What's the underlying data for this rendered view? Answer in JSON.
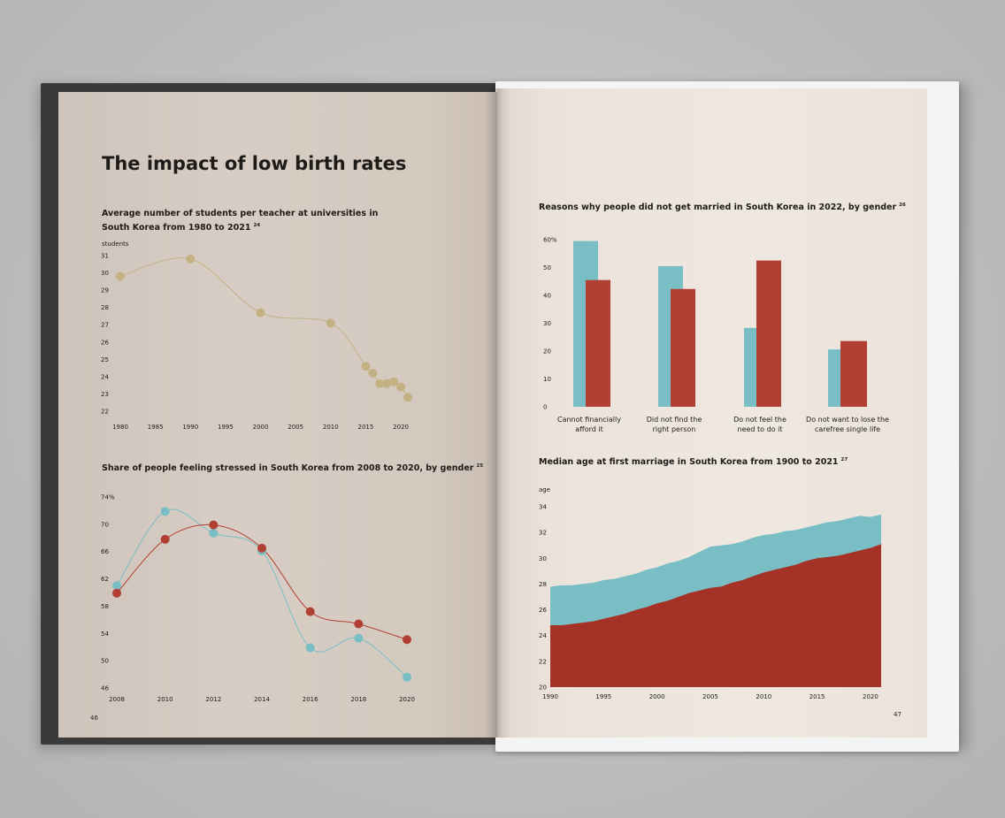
{
  "page_left": {
    "heading": "The impact of low birth rates",
    "page_number": "46"
  },
  "page_right": {
    "page_number": "47"
  },
  "colors": {
    "tan": "#c3b184",
    "teal": "#79bec4",
    "red": "#b23f33",
    "dark_red": "#a63127",
    "text": "#1e1b18"
  },
  "chart_data": [
    {
      "id": "students",
      "type": "line",
      "title": "Average number of students per teacher at universities in South Korea from 1980 to 2021",
      "title_lines": [
        "Average number of students per teacher at universities in",
        "South Korea from 1980 to 2021"
      ],
      "footnote": "24",
      "unit_label": "students",
      "xticks": [
        "1980",
        "1985",
        "1990",
        "1995",
        "2000",
        "2005",
        "2010",
        "2015",
        "2020"
      ],
      "yticks": [
        "22",
        "23",
        "24",
        "25",
        "26",
        "27",
        "28",
        "29",
        "30",
        "31"
      ],
      "xlim": [
        1980,
        2021
      ],
      "ylim": [
        22,
        31
      ],
      "series": [
        {
          "x": [
            1980,
            1990,
            2000,
            2010,
            2015,
            2016,
            2017,
            2018,
            2019,
            2020,
            2021
          ],
          "y": [
            29.8,
            30.8,
            27.7,
            27.1,
            24.6,
            24.2,
            23.6,
            23.6,
            23.7,
            23.4,
            22.8
          ]
        }
      ]
    },
    {
      "id": "stress",
      "type": "line",
      "title": "Share of people feeling stressed in South Korea from 2008 to 2020, by gender",
      "footnote": "25",
      "xticks": [
        "2008",
        "2010",
        "2012",
        "2014",
        "2016",
        "2018",
        "2020"
      ],
      "yticks": [
        "46",
        "50",
        "54",
        "58",
        "62",
        "66",
        "70",
        "74%"
      ],
      "xlim": [
        2008,
        2020
      ],
      "ylim": [
        46,
        74
      ],
      "series": [
        {
          "color": "teal",
          "x": [
            2008,
            2010,
            2012,
            2014,
            2016,
            2018,
            2020
          ],
          "y": [
            61.0,
            71.9,
            68.7,
            66.1,
            51.9,
            53.3,
            47.6
          ]
        },
        {
          "color": "red",
          "x": [
            2008,
            2010,
            2012,
            2014,
            2016,
            2018,
            2020
          ],
          "y": [
            59.9,
            67.8,
            69.9,
            66.5,
            57.2,
            55.4,
            53.1
          ]
        }
      ]
    },
    {
      "id": "reasons",
      "type": "bar",
      "title": "Reasons why people did not get married in South Korea in 2022, by gender",
      "footnote": "26",
      "categories": [
        [
          "Cannot financially",
          "afford it"
        ],
        [
          "Did not find the",
          "right person"
        ],
        [
          "Do not feel the",
          "need to do it"
        ],
        [
          "Do not want to lose the",
          "carefree single life"
        ]
      ],
      "yticks": [
        "0",
        "10",
        "20",
        "30",
        "40",
        "50",
        "60%"
      ],
      "ylim": [
        0,
        60
      ],
      "series": [
        {
          "color": "teal",
          "values": [
            59.5,
            50.5,
            28.3,
            20.6
          ]
        },
        {
          "color": "red",
          "values": [
            45.5,
            42.3,
            52.5,
            23.6
          ]
        }
      ]
    },
    {
      "id": "marriage-age",
      "type": "area",
      "title": "Median age at first marriage in South Korea from 1900 to 2021",
      "footnote": "27",
      "unit_label": "age",
      "xticks": [
        "1990",
        "1995",
        "2000",
        "2005",
        "2010",
        "2015",
        "2020"
      ],
      "yticks": [
        "20",
        "22",
        "24",
        "26",
        "28",
        "30",
        "32",
        "34"
      ],
      "xlim": [
        1990,
        2021
      ],
      "ylim": [
        20,
        34
      ],
      "x": [
        1990,
        1991,
        1992,
        1993,
        1994,
        1995,
        1996,
        1997,
        1998,
        1999,
        2000,
        2001,
        2002,
        2003,
        2004,
        2005,
        2006,
        2007,
        2008,
        2009,
        2010,
        2011,
        2012,
        2013,
        2014,
        2015,
        2016,
        2017,
        2018,
        2019,
        2020,
        2021
      ],
      "series": [
        {
          "color": "teal",
          "values": [
            27.8,
            27.9,
            27.9,
            28.0,
            28.1,
            28.3,
            28.4,
            28.6,
            28.8,
            29.1,
            29.3,
            29.6,
            29.8,
            30.1,
            30.5,
            30.9,
            31.0,
            31.1,
            31.3,
            31.6,
            31.8,
            31.9,
            32.1,
            32.2,
            32.4,
            32.6,
            32.8,
            32.9,
            33.1,
            33.3,
            33.2,
            33.4
          ]
        },
        {
          "color": "red",
          "values": [
            24.8,
            24.8,
            24.9,
            25.0,
            25.1,
            25.3,
            25.5,
            25.7,
            26.0,
            26.2,
            26.5,
            26.7,
            27.0,
            27.3,
            27.5,
            27.7,
            27.8,
            28.1,
            28.3,
            28.6,
            28.9,
            29.1,
            29.3,
            29.5,
            29.8,
            30.0,
            30.1,
            30.2,
            30.4,
            30.6,
            30.8,
            31.1
          ]
        }
      ]
    }
  ]
}
